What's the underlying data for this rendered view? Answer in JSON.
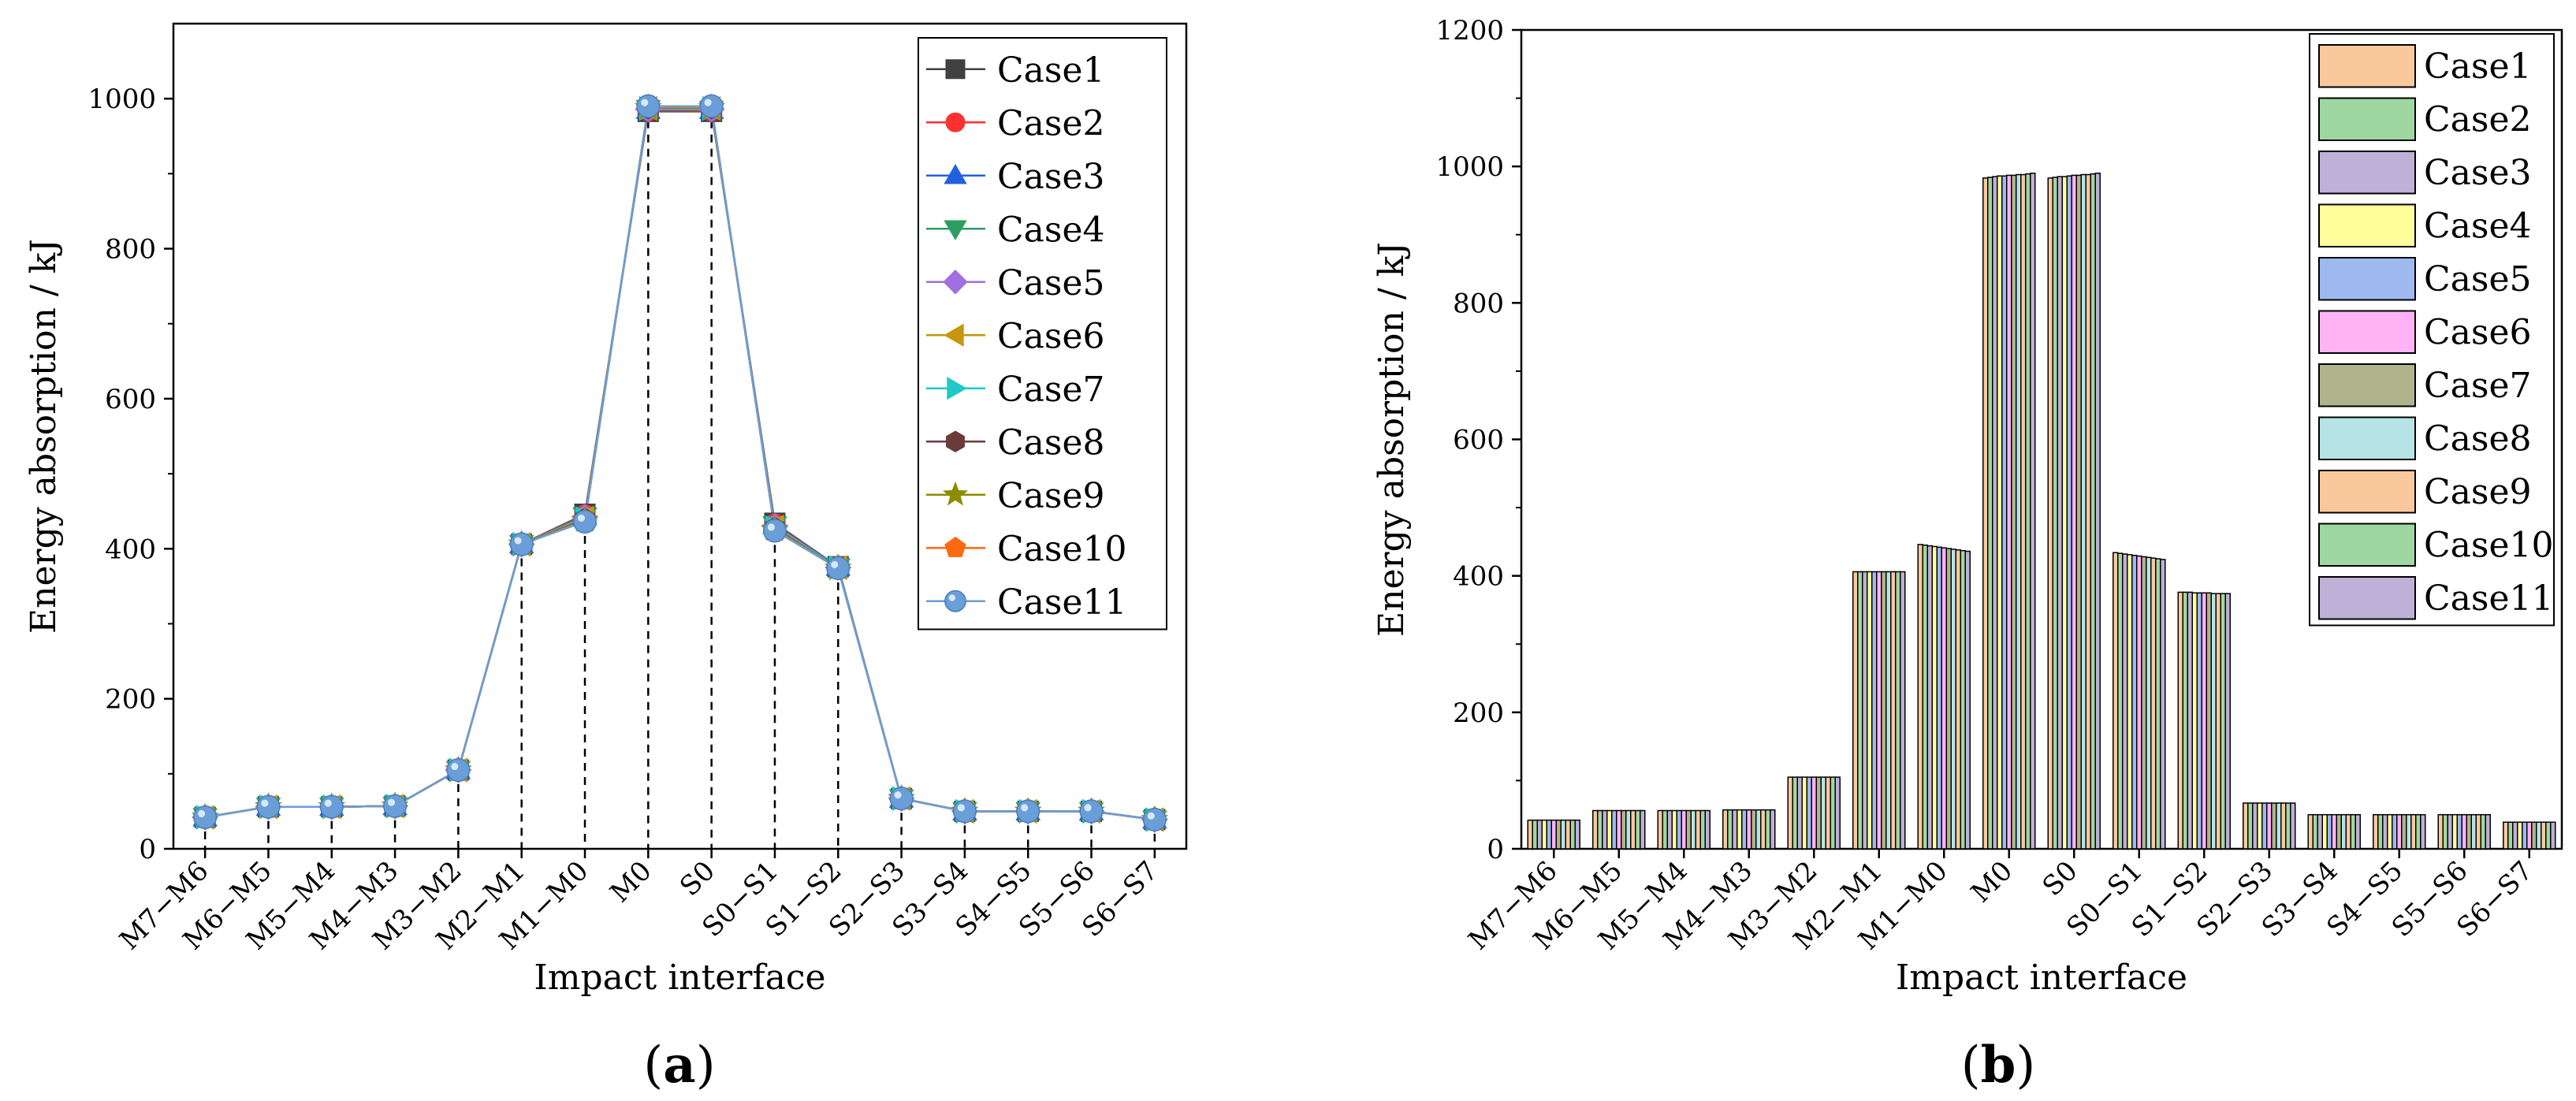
{
  "figure": {
    "panel_a_label": "a",
    "panel_b_label": "b"
  },
  "chart_data": [
    {
      "type": "line",
      "panel": "a",
      "title": "",
      "xlabel": "Impact interface",
      "ylabel": "Energy absorption / kJ",
      "ylim": [
        0,
        1100
      ],
      "yticks": [
        0,
        200,
        400,
        600,
        800,
        1000
      ],
      "grid": false,
      "legend": "top-right",
      "categories": [
        "M7−M6",
        "M6−M5",
        "M5−M4",
        "M4−M3",
        "M3−M2",
        "M2−M1",
        "M1−M0",
        "M0",
        "S0",
        "S0−S1",
        "S1−S2",
        "S2−S3",
        "S3−S4",
        "S4−S5",
        "S5−S6",
        "S6−S7"
      ],
      "drop_lines": "dashed vertical lines from each point to the x-axis",
      "series": [
        {
          "name": "Case1",
          "color": "#404040",
          "marker": "square",
          "values": [
            42,
            56,
            56,
            57,
            105,
            406,
            446,
            983,
            983,
            434,
            376,
            67,
            50,
            50,
            50,
            39
          ]
        },
        {
          "name": "Case2",
          "color": "#ff3030",
          "marker": "circle",
          "values": [
            42,
            56,
            56,
            57,
            105,
            406,
            445,
            984,
            984,
            433,
            376,
            67,
            50,
            50,
            50,
            39
          ]
        },
        {
          "name": "Case3",
          "color": "#2060e0",
          "marker": "triangle-up",
          "values": [
            42,
            56,
            56,
            57,
            105,
            406,
            444,
            985,
            985,
            432,
            376,
            67,
            50,
            50,
            50,
            39
          ]
        },
        {
          "name": "Case4",
          "color": "#2e9e60",
          "marker": "triangle-down",
          "values": [
            42,
            56,
            56,
            57,
            105,
            406,
            443,
            986,
            985,
            431,
            375,
            67,
            50,
            50,
            50,
            39
          ]
        },
        {
          "name": "Case5",
          "color": "#a070e0",
          "marker": "diamond",
          "values": [
            42,
            56,
            56,
            57,
            105,
            406,
            442,
            986,
            986,
            430,
            375,
            67,
            50,
            50,
            50,
            39
          ]
        },
        {
          "name": "Case6",
          "color": "#c8960c",
          "marker": "triangle-left",
          "values": [
            42,
            56,
            56,
            57,
            105,
            406,
            441,
            987,
            987,
            429,
            375,
            67,
            50,
            50,
            50,
            39
          ]
        },
        {
          "name": "Case7",
          "color": "#20c8c8",
          "marker": "triangle-right",
          "values": [
            42,
            56,
            56,
            57,
            105,
            406,
            440,
            987,
            987,
            428,
            375,
            67,
            50,
            50,
            50,
            39
          ]
        },
        {
          "name": "Case8",
          "color": "#6b3a3a",
          "marker": "hexagon",
          "values": [
            42,
            56,
            56,
            57,
            105,
            406,
            439,
            988,
            988,
            427,
            374,
            67,
            50,
            50,
            50,
            39
          ]
        },
        {
          "name": "Case9",
          "color": "#8c8c00",
          "marker": "star",
          "values": [
            42,
            56,
            56,
            57,
            105,
            406,
            438,
            988,
            988,
            426,
            374,
            67,
            50,
            50,
            50,
            39
          ]
        },
        {
          "name": "Case10",
          "color": "#ff6a10",
          "marker": "pentagon",
          "values": [
            42,
            56,
            56,
            57,
            105,
            406,
            437,
            989,
            989,
            425,
            374,
            67,
            50,
            50,
            50,
            39
          ]
        },
        {
          "name": "Case11",
          "color": "#6a9ed8",
          "marker": "sphere",
          "values": [
            42,
            56,
            56,
            57,
            105,
            406,
            436,
            990,
            990,
            424,
            374,
            67,
            50,
            50,
            50,
            39
          ]
        }
      ]
    },
    {
      "type": "bar",
      "panel": "b",
      "title": "",
      "xlabel": "Impact interface",
      "ylabel": "Energy absorption / kJ",
      "ylim": [
        0,
        1200
      ],
      "yticks": [
        0,
        200,
        400,
        600,
        800,
        1000,
        1200
      ],
      "grid": false,
      "legend": "top-right",
      "categories": [
        "M7−M6",
        "M6−M5",
        "M5−M4",
        "M4−M3",
        "M3−M2",
        "M2−M1",
        "M1−M0",
        "M0",
        "S0",
        "S0−S1",
        "S1−S2",
        "S2−S3",
        "S3−S4",
        "S4−S5",
        "S5−S6",
        "S6−S7"
      ],
      "series": [
        {
          "name": "Case1",
          "color": "#f9c99c",
          "values": [
            42,
            56,
            56,
            57,
            105,
            406,
            446,
            983,
            983,
            434,
            376,
            67,
            50,
            50,
            50,
            39
          ]
        },
        {
          "name": "Case2",
          "color": "#9fd7a0",
          "values": [
            42,
            56,
            56,
            57,
            105,
            406,
            445,
            984,
            984,
            433,
            376,
            67,
            50,
            50,
            50,
            39
          ]
        },
        {
          "name": "Case3",
          "color": "#bfb0d7",
          "values": [
            42,
            56,
            56,
            57,
            105,
            406,
            444,
            985,
            985,
            432,
            376,
            67,
            50,
            50,
            50,
            39
          ]
        },
        {
          "name": "Case4",
          "color": "#ffff9c",
          "values": [
            42,
            56,
            56,
            57,
            105,
            406,
            443,
            986,
            985,
            431,
            375,
            67,
            50,
            50,
            50,
            39
          ]
        },
        {
          "name": "Case5",
          "color": "#9db9ef",
          "values": [
            42,
            56,
            56,
            57,
            105,
            406,
            442,
            986,
            986,
            430,
            375,
            67,
            50,
            50,
            50,
            39
          ]
        },
        {
          "name": "Case6",
          "color": "#ffb3f4",
          "values": [
            42,
            56,
            56,
            57,
            105,
            406,
            441,
            987,
            987,
            429,
            375,
            67,
            50,
            50,
            50,
            39
          ]
        },
        {
          "name": "Case7",
          "color": "#b0b48c",
          "values": [
            42,
            56,
            56,
            57,
            105,
            406,
            440,
            987,
            987,
            428,
            375,
            67,
            50,
            50,
            50,
            39
          ]
        },
        {
          "name": "Case8",
          "color": "#b6e4e6",
          "values": [
            42,
            56,
            56,
            57,
            105,
            406,
            439,
            988,
            988,
            427,
            374,
            67,
            50,
            50,
            50,
            39
          ]
        },
        {
          "name": "Case9",
          "color": "#f9c99c",
          "values": [
            42,
            56,
            56,
            57,
            105,
            406,
            438,
            988,
            988,
            426,
            374,
            67,
            50,
            50,
            50,
            39
          ]
        },
        {
          "name": "Case10",
          "color": "#9fd7a0",
          "values": [
            42,
            56,
            56,
            57,
            105,
            406,
            437,
            989,
            989,
            425,
            374,
            67,
            50,
            50,
            50,
            39
          ]
        },
        {
          "name": "Case11",
          "color": "#bfb0d7",
          "values": [
            42,
            56,
            56,
            57,
            105,
            406,
            436,
            990,
            990,
            424,
            374,
            67,
            50,
            50,
            50,
            39
          ]
        }
      ]
    }
  ]
}
